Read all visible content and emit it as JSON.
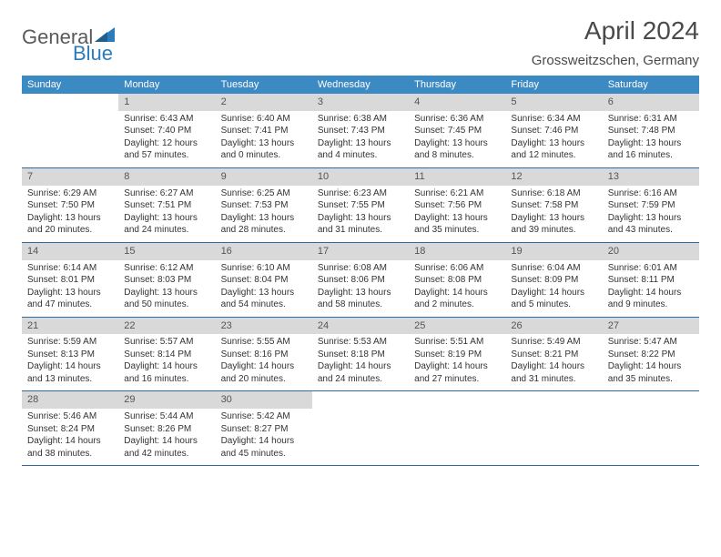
{
  "logo": {
    "line1": "General",
    "line2": "Blue"
  },
  "title": "April 2024",
  "location": "Grossweitzschen, Germany",
  "colors": {
    "header_bg": "#3b8ac4",
    "header_text": "#ffffff",
    "rule": "#2f6a9e",
    "daynum_shade": "#d9d9d9",
    "body_text": "#333333",
    "title_text": "#4a4a4a"
  },
  "days_of_week": [
    "Sunday",
    "Monday",
    "Tuesday",
    "Wednesday",
    "Thursday",
    "Friday",
    "Saturday"
  ],
  "first_weekday_index": 1,
  "last_day": 30,
  "days": {
    "1": {
      "sr": "6:43 AM",
      "ss": "7:40 PM",
      "dl": "12 hours and 57 minutes."
    },
    "2": {
      "sr": "6:40 AM",
      "ss": "7:41 PM",
      "dl": "13 hours and 0 minutes."
    },
    "3": {
      "sr": "6:38 AM",
      "ss": "7:43 PM",
      "dl": "13 hours and 4 minutes."
    },
    "4": {
      "sr": "6:36 AM",
      "ss": "7:45 PM",
      "dl": "13 hours and 8 minutes."
    },
    "5": {
      "sr": "6:34 AM",
      "ss": "7:46 PM",
      "dl": "13 hours and 12 minutes."
    },
    "6": {
      "sr": "6:31 AM",
      "ss": "7:48 PM",
      "dl": "13 hours and 16 minutes."
    },
    "7": {
      "sr": "6:29 AM",
      "ss": "7:50 PM",
      "dl": "13 hours and 20 minutes."
    },
    "8": {
      "sr": "6:27 AM",
      "ss": "7:51 PM",
      "dl": "13 hours and 24 minutes."
    },
    "9": {
      "sr": "6:25 AM",
      "ss": "7:53 PM",
      "dl": "13 hours and 28 minutes."
    },
    "10": {
      "sr": "6:23 AM",
      "ss": "7:55 PM",
      "dl": "13 hours and 31 minutes."
    },
    "11": {
      "sr": "6:21 AM",
      "ss": "7:56 PM",
      "dl": "13 hours and 35 minutes."
    },
    "12": {
      "sr": "6:18 AM",
      "ss": "7:58 PM",
      "dl": "13 hours and 39 minutes."
    },
    "13": {
      "sr": "6:16 AM",
      "ss": "7:59 PM",
      "dl": "13 hours and 43 minutes."
    },
    "14": {
      "sr": "6:14 AM",
      "ss": "8:01 PM",
      "dl": "13 hours and 47 minutes."
    },
    "15": {
      "sr": "6:12 AM",
      "ss": "8:03 PM",
      "dl": "13 hours and 50 minutes."
    },
    "16": {
      "sr": "6:10 AM",
      "ss": "8:04 PM",
      "dl": "13 hours and 54 minutes."
    },
    "17": {
      "sr": "6:08 AM",
      "ss": "8:06 PM",
      "dl": "13 hours and 58 minutes."
    },
    "18": {
      "sr": "6:06 AM",
      "ss": "8:08 PM",
      "dl": "14 hours and 2 minutes."
    },
    "19": {
      "sr": "6:04 AM",
      "ss": "8:09 PM",
      "dl": "14 hours and 5 minutes."
    },
    "20": {
      "sr": "6:01 AM",
      "ss": "8:11 PM",
      "dl": "14 hours and 9 minutes."
    },
    "21": {
      "sr": "5:59 AM",
      "ss": "8:13 PM",
      "dl": "14 hours and 13 minutes."
    },
    "22": {
      "sr": "5:57 AM",
      "ss": "8:14 PM",
      "dl": "14 hours and 16 minutes."
    },
    "23": {
      "sr": "5:55 AM",
      "ss": "8:16 PM",
      "dl": "14 hours and 20 minutes."
    },
    "24": {
      "sr": "5:53 AM",
      "ss": "8:18 PM",
      "dl": "14 hours and 24 minutes."
    },
    "25": {
      "sr": "5:51 AM",
      "ss": "8:19 PM",
      "dl": "14 hours and 27 minutes."
    },
    "26": {
      "sr": "5:49 AM",
      "ss": "8:21 PM",
      "dl": "14 hours and 31 minutes."
    },
    "27": {
      "sr": "5:47 AM",
      "ss": "8:22 PM",
      "dl": "14 hours and 35 minutes."
    },
    "28": {
      "sr": "5:46 AM",
      "ss": "8:24 PM",
      "dl": "14 hours and 38 minutes."
    },
    "29": {
      "sr": "5:44 AM",
      "ss": "8:26 PM",
      "dl": "14 hours and 42 minutes."
    },
    "30": {
      "sr": "5:42 AM",
      "ss": "8:27 PM",
      "dl": "14 hours and 45 minutes."
    }
  },
  "labels": {
    "sunrise": "Sunrise:",
    "sunset": "Sunset:",
    "daylight": "Daylight:"
  }
}
